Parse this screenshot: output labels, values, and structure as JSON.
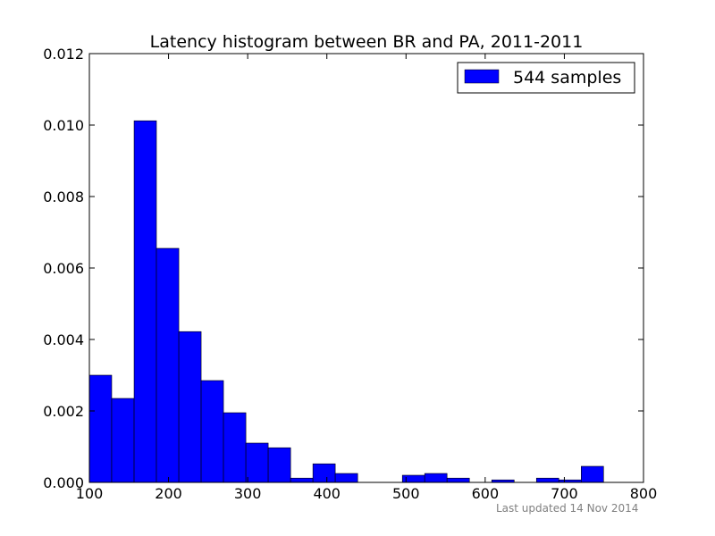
{
  "chart_data": {
    "type": "bar",
    "title": "Latency histogram between BR and PA, 2011-2011",
    "xlabel": "",
    "ylabel": "",
    "xlim": [
      100,
      800
    ],
    "ylim": [
      0,
      0.012
    ],
    "x_ticks": [
      100,
      200,
      300,
      400,
      500,
      600,
      700,
      800
    ],
    "y_ticks": [
      0.0,
      0.002,
      0.004,
      0.006,
      0.008,
      0.01,
      0.012
    ],
    "y_tick_labels": [
      "0.000",
      "0.002",
      "0.004",
      "0.006",
      "0.008",
      "0.010",
      "0.012"
    ],
    "bar_color": "#0000ff",
    "bar_edge_color": "#000000",
    "legend": {
      "position": "top-right",
      "entries": [
        "544 samples"
      ]
    },
    "grid": false,
    "bins": [
      {
        "x0": 100.0,
        "x1": 128.2,
        "value": 0.003
      },
      {
        "x0": 128.2,
        "x1": 156.5,
        "value": 0.00235
      },
      {
        "x0": 156.5,
        "x1": 184.7,
        "value": 0.01012
      },
      {
        "x0": 184.7,
        "x1": 213.0,
        "value": 0.00655
      },
      {
        "x0": 213.0,
        "x1": 241.2,
        "value": 0.00422
      },
      {
        "x0": 241.2,
        "x1": 269.4,
        "value": 0.00285
      },
      {
        "x0": 269.4,
        "x1": 297.7,
        "value": 0.00195
      },
      {
        "x0": 297.7,
        "x1": 325.9,
        "value": 0.0011
      },
      {
        "x0": 325.9,
        "x1": 354.2,
        "value": 0.00097
      },
      {
        "x0": 354.2,
        "x1": 382.4,
        "value": 0.00012
      },
      {
        "x0": 382.4,
        "x1": 410.6,
        "value": 0.00052
      },
      {
        "x0": 410.6,
        "x1": 438.9,
        "value": 0.00025
      },
      {
        "x0": 438.9,
        "x1": 467.1,
        "value": 0.0
      },
      {
        "x0": 467.1,
        "x1": 495.4,
        "value": 0.0
      },
      {
        "x0": 495.4,
        "x1": 523.6,
        "value": 0.0002
      },
      {
        "x0": 523.6,
        "x1": 551.8,
        "value": 0.00025
      },
      {
        "x0": 551.8,
        "x1": 580.1,
        "value": 0.00012
      },
      {
        "x0": 580.1,
        "x1": 608.3,
        "value": 0.0
      },
      {
        "x0": 608.3,
        "x1": 636.6,
        "value": 7e-05
      },
      {
        "x0": 636.6,
        "x1": 664.8,
        "value": 0.0
      },
      {
        "x0": 664.8,
        "x1": 693.0,
        "value": 0.00012
      },
      {
        "x0": 693.0,
        "x1": 721.3,
        "value": 7e-05
      },
      {
        "x0": 721.3,
        "x1": 749.5,
        "value": 0.00045
      }
    ]
  },
  "footer": {
    "text": "Last updated 14 Nov 2014"
  }
}
